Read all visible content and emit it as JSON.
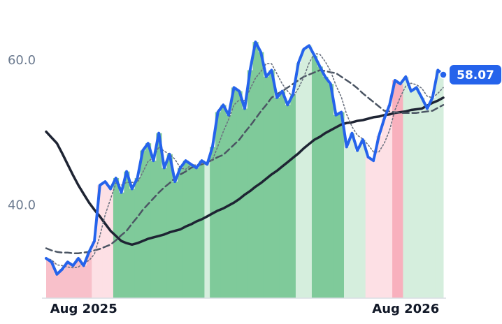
{
  "chart_data": {
    "type": "line",
    "categories": [
      null,
      null,
      null,
      null,
      null,
      null,
      null,
      "Aug 2025",
      null,
      null,
      null,
      null,
      null,
      null,
      null,
      null,
      null,
      null,
      null,
      null,
      null,
      null,
      null,
      null,
      null,
      null,
      null,
      null,
      null,
      null,
      null,
      null,
      null,
      null,
      null,
      null,
      null,
      null,
      null,
      null,
      null,
      null,
      null,
      null,
      null,
      null,
      null,
      null,
      null,
      null,
      null,
      null,
      null,
      null,
      null,
      null,
      null,
      null,
      null,
      null,
      null,
      null,
      null,
      null,
      null,
      null,
      null,
      "Aug 2026",
      null,
      null,
      null,
      null,
      null,
      null,
      null
    ],
    "ylim": [
      27.2,
      68.4
    ],
    "yticks": [
      {
        "value": 40,
        "label": "40.0"
      },
      {
        "value": 60,
        "label": "60.0"
      }
    ],
    "series": [
      {
        "color": "#2563eb",
        "style": "solid",
        "width": 4,
        "values": [
          32.7,
          32.2,
          30.5,
          31.2,
          32.2,
          31.7,
          32.7,
          31.7,
          33.6,
          35.1,
          42.8,
          43.3,
          42.3,
          43.8,
          41.8,
          44.7,
          42.3,
          43.8,
          47.6,
          48.6,
          46.2,
          50.0,
          45.2,
          47.1,
          43.3,
          45.2,
          46.2,
          45.7,
          45.2,
          46.2,
          45.7,
          48.1,
          52.9,
          53.9,
          52.5,
          56.3,
          55.8,
          53.4,
          58.7,
          62.6,
          61.2,
          57.8,
          58.7,
          54.9,
          55.8,
          53.9,
          55.4,
          59.7,
          61.6,
          62.1,
          60.7,
          59.2,
          57.8,
          56.8,
          52.5,
          52.9,
          48.1,
          50.0,
          47.6,
          49.1,
          46.7,
          46.2,
          49.6,
          52.0,
          53.9,
          57.3,
          56.8,
          57.8,
          55.8,
          56.3,
          54.9,
          53.4,
          54.9,
          58.7,
          58.07
        ],
        "fill_colors": [
          "#f8c0ca",
          "#f8c0ca",
          "#f8c0ca",
          "#f8c0ca",
          "#f8c0ca",
          "#f8c0ca",
          "#f8c0ca",
          "#f8c0ca",
          "#f8c0ca",
          "#fde0e5",
          "#fde0e5",
          "#fde0e5",
          "#fde0e5",
          "#7fca9a",
          "#7fca9a",
          "#7fca9a",
          "#7fca9a",
          "#7fca9a",
          "#7fca9a",
          "#7fca9a",
          "#7fca9a",
          "#7fca9a",
          "#7fca9a",
          "#7fca9a",
          "#7fca9a",
          "#7fca9a",
          "#7fca9a",
          "#7fca9a",
          "#7fca9a",
          "#7fca9a",
          "#d5eedd",
          "#7fca9a",
          "#7fca9a",
          "#7fca9a",
          "#7fca9a",
          "#7fca9a",
          "#7fca9a",
          "#7fca9a",
          "#7fca9a",
          "#7fca9a",
          "#7fca9a",
          "#7fca9a",
          "#7fca9a",
          "#7fca9a",
          "#7fca9a",
          "#7fca9a",
          "#7fca9a",
          "#d5eedd",
          "#d5eedd",
          "#d5eedd",
          "#7fca9a",
          "#7fca9a",
          "#7fca9a",
          "#7fca9a",
          "#7fca9a",
          "#7fca9a",
          "#d5eedd",
          "#d5eedd",
          "#d5eedd",
          "#d5eedd",
          "#fde0e5",
          "#fde0e5",
          "#fde0e5",
          "#fde0e5",
          "#fde0e5",
          "#f8b0bd",
          "#f8b0bd",
          "#d5eedd",
          "#d5eedd",
          "#d5eedd",
          "#d5eedd",
          "#d5eedd",
          "#d5eedd",
          "#d5eedd",
          "#d5eedd"
        ]
      },
      {
        "color": "#6b7280",
        "style": "dotted",
        "width": 1.6,
        "values": [
          32.7,
          32.5,
          31.8,
          31.7,
          31.5,
          31.4,
          31.5,
          32.1,
          32.4,
          33.3,
          35.8,
          38.7,
          40.9,
          43.1,
          42.8,
          43.2,
          43.2,
          43.2,
          44.6,
          46.1,
          46.6,
          48.1,
          47.5,
          47.1,
          46.4,
          45.2,
          45.0,
          45.6,
          45.6,
          45.8,
          45.7,
          46.3,
          48.2,
          50.2,
          51.9,
          53.9,
          54.6,
          54.5,
          56.1,
          57.6,
          58.5,
          59.6,
          59.6,
          58.2,
          56.8,
          55.8,
          55.0,
          56.2,
          57.7,
          59.7,
          61.0,
          60.9,
          59.9,
          58.6,
          56.6,
          55.0,
          52.6,
          50.9,
          49.7,
          49.2,
          48.4,
          47.4,
          47.4,
          48.6,
          50.4,
          53.2,
          55.0,
          56.5,
          56.9,
          56.7,
          56.2,
          55.1,
          54.9,
          55.5,
          56.3
        ]
      },
      {
        "color": "#4b5563",
        "style": "dashed",
        "width": 2.5,
        "values": [
          34.1,
          33.8,
          33.6,
          33.5,
          33.5,
          33.4,
          33.4,
          33.5,
          33.6,
          33.8,
          34.0,
          34.3,
          34.6,
          35.2,
          35.9,
          36.5,
          37.5,
          38.4,
          39.4,
          40.2,
          41.0,
          41.8,
          42.5,
          43.1,
          43.8,
          44.3,
          44.7,
          45.2,
          45.5,
          45.7,
          46.0,
          46.3,
          46.7,
          47.0,
          47.7,
          48.4,
          49.1,
          50.1,
          51.0,
          52.0,
          53.0,
          53.9,
          54.9,
          55.4,
          55.8,
          56.3,
          56.8,
          57.3,
          57.8,
          58.1,
          58.4,
          58.7,
          58.6,
          58.4,
          58.3,
          57.8,
          57.3,
          56.8,
          56.2,
          55.5,
          54.9,
          54.3,
          53.7,
          53.1,
          53.0,
          52.9,
          52.8,
          52.8,
          52.8,
          52.8,
          52.9,
          53.0,
          53.1,
          53.5,
          53.9
        ]
      },
      {
        "color": "#1e2433",
        "style": "solid",
        "width": 3.5,
        "values": [
          50.2,
          49.4,
          48.6,
          47.2,
          45.7,
          44.2,
          42.8,
          41.6,
          40.4,
          39.4,
          38.5,
          37.5,
          36.5,
          35.8,
          35.1,
          34.8,
          34.6,
          34.8,
          35.1,
          35.4,
          35.6,
          35.8,
          36.0,
          36.3,
          36.5,
          36.7,
          37.1,
          37.4,
          37.8,
          38.1,
          38.5,
          38.9,
          39.3,
          39.6,
          40.0,
          40.4,
          40.9,
          41.5,
          42.0,
          42.6,
          43.1,
          43.7,
          44.3,
          44.8,
          45.4,
          46.0,
          46.6,
          47.2,
          47.9,
          48.5,
          49.1,
          49.5,
          50.0,
          50.4,
          50.8,
          51.2,
          51.4,
          51.5,
          51.7,
          51.8,
          52.0,
          52.2,
          52.3,
          52.5,
          52.6,
          52.8,
          52.9,
          53.0,
          53.2,
          53.3,
          53.4,
          53.8,
          54.2,
          54.5,
          54.9
        ]
      }
    ]
  }
}
